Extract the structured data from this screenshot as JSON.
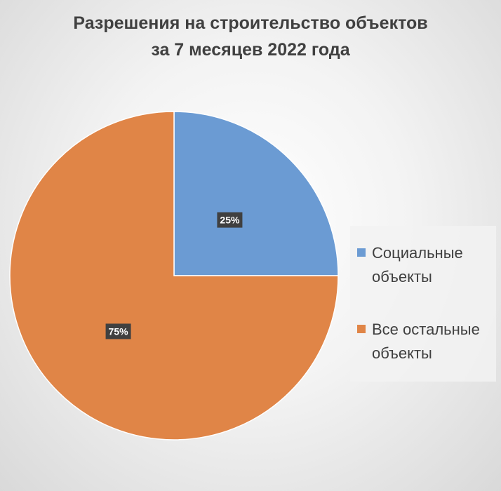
{
  "chart_data": {
    "type": "pie",
    "title_lines": [
      "Разрешения на строительство объектов",
      "за 7 месяцев 2022 года"
    ],
    "slices": [
      {
        "name": "Социальные объекты",
        "name_lines": [
          "Социальные",
          "объекты"
        ],
        "value": 25,
        "label": "25%",
        "color": "#6b9bd3"
      },
      {
        "name": "Все остальные объекты",
        "name_lines": [
          "Все остальные",
          "объекты"
        ],
        "value": 75,
        "label": "75%",
        "color": "#e08547"
      }
    ],
    "legend_position": "right",
    "start_angle": "12 o'clock, clockwise"
  }
}
